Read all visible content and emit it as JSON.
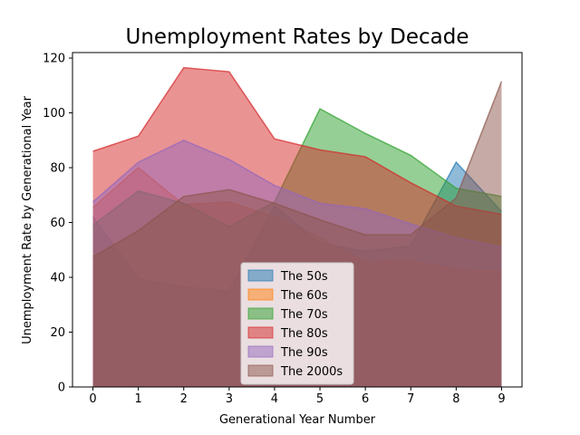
{
  "chart_data": {
    "type": "area",
    "title": "Unemployment Rates by Decade",
    "xlabel": "Generational Year Number",
    "ylabel": "Unemployment Rate by Generational Year",
    "x": [
      0,
      1,
      2,
      3,
      4,
      5,
      6,
      7,
      8,
      9
    ],
    "xlim": [
      -0.45,
      9.45
    ],
    "ylim": [
      0,
      122
    ],
    "xticks": [
      "0",
      "1",
      "2",
      "3",
      "4",
      "5",
      "6",
      "7",
      "8",
      "9"
    ],
    "yticks": [
      "0",
      "20",
      "40",
      "60",
      "80",
      "100",
      "120"
    ],
    "grid": false,
    "legend_position": "lower center",
    "stacked": false,
    "series": [
      {
        "name": "The 50s",
        "color": "#1f77b4",
        "values": [
          62,
          39.5,
          36.5,
          35,
          66,
          52.5,
          49.5,
          51.5,
          82,
          64
        ]
      },
      {
        "name": "The 60s",
        "color": "#ff7f0e",
        "values": [
          65.5,
          80,
          66.5,
          67.5,
          62,
          54.5,
          45.5,
          46,
          43,
          42
        ]
      },
      {
        "name": "The 70s",
        "color": "#2ca02c",
        "values": [
          59,
          71.5,
          67,
          58.5,
          67.5,
          101.5,
          92.5,
          84.5,
          72.5,
          69.5
        ]
      },
      {
        "name": "The 80s",
        "color": "#d62728",
        "values": [
          86,
          91.5,
          116.5,
          115,
          90.5,
          86.5,
          84,
          74.5,
          66,
          63
        ]
      },
      {
        "name": "The 90s",
        "color": "#9467bd",
        "values": [
          67.5,
          82,
          90,
          83,
          73.5,
          67,
          65,
          59.5,
          54.5,
          51
        ]
      },
      {
        "name": "The 2000s",
        "color": "#8c564b",
        "values": [
          47.5,
          57,
          69.5,
          72,
          67,
          61,
          55.5,
          55.5,
          69,
          111.5
        ]
      }
    ]
  }
}
